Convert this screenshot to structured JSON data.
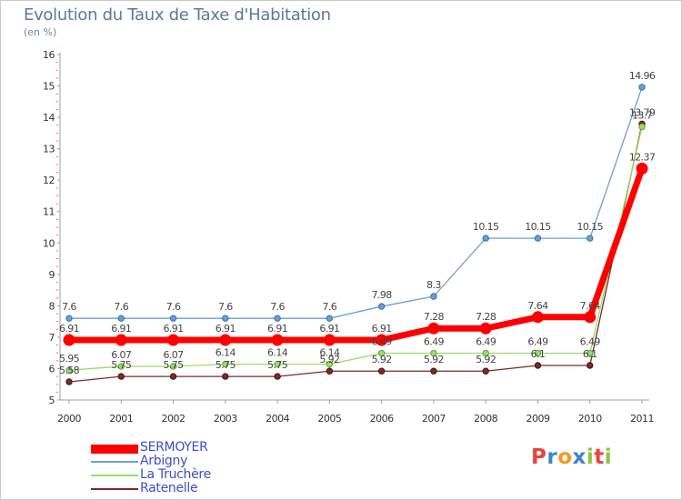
{
  "title": "Evolution du Taux de Taxe d'Habitation",
  "unit_label": "(en %)",
  "logo": {
    "text": "Proxiti",
    "letters": [
      "P",
      "r",
      "o",
      "x",
      "i",
      "t",
      "i"
    ],
    "colors": [
      "#e8433a",
      "#3a86c8",
      "#f39b20",
      "#3a86c8",
      "#8cc63e",
      "#e8433a",
      "#8cc63e"
    ]
  },
  "chart_data": {
    "type": "line",
    "title": "Evolution du Taux de Taxe d'Habitation",
    "ylabel": "(en %)",
    "xlabel": "",
    "x": [
      "2000",
      "2001",
      "2002",
      "2003",
      "2004",
      "2005",
      "2006",
      "2007",
      "2008",
      "2009",
      "2010",
      "2011"
    ],
    "y_ticks": [
      "5",
      "6",
      "7",
      "8",
      "9",
      "10",
      "11",
      "12",
      "13",
      "14",
      "15",
      "16"
    ],
    "ylim": [
      5,
      16
    ],
    "grid": false,
    "legend_position": "bottom-left",
    "series": [
      {
        "name": "SERMOYER",
        "color": "#ff0000",
        "values": [
          6.91,
          6.91,
          6.91,
          6.91,
          6.91,
          6.91,
          6.91,
          7.28,
          7.28,
          7.64,
          7.64,
          12.37
        ],
        "labels": [
          "6.91",
          "6.91",
          "6.91",
          "6.91",
          "6.91",
          "6.91",
          "6.91",
          "7.28",
          "7.28",
          "7.64",
          "7.64",
          "12.37"
        ]
      },
      {
        "name": "Arbigny",
        "color": "#6a9fd4",
        "values": [
          7.6,
          7.6,
          7.6,
          7.6,
          7.6,
          7.6,
          7.98,
          8.3,
          10.15,
          10.15,
          10.15,
          14.96
        ],
        "labels": [
          "7.6",
          "7.6",
          "7.6",
          "7.6",
          "7.6",
          "7.6",
          "7.98",
          "8.3",
          "10.15",
          "10.15",
          "10.15",
          "14.96"
        ]
      },
      {
        "name": "La Truchère",
        "color": "#99dd66",
        "values": [
          5.95,
          6.07,
          6.07,
          6.14,
          6.14,
          6.14,
          6.49,
          6.49,
          6.49,
          6.49,
          6.49,
          13.7
        ],
        "labels": [
          "5.95",
          "6.07",
          "6.07",
          "6.14",
          "6.14",
          "6.14",
          "6.49",
          "6.49",
          "6.49",
          "6.49",
          "6.49",
          "13.7"
        ]
      },
      {
        "name": "Ratenelle",
        "color": "#7a2a2a",
        "values": [
          5.58,
          5.75,
          5.75,
          5.75,
          5.75,
          5.92,
          5.92,
          5.92,
          5.92,
          6.1,
          6.1,
          13.79
        ],
        "labels": [
          "5.58",
          "5.75",
          "5.75",
          "5.75",
          "5.75",
          "5.92",
          "5.92",
          "5.92",
          "5.92",
          "6.1",
          "6.1",
          "13.79"
        ]
      }
    ]
  }
}
